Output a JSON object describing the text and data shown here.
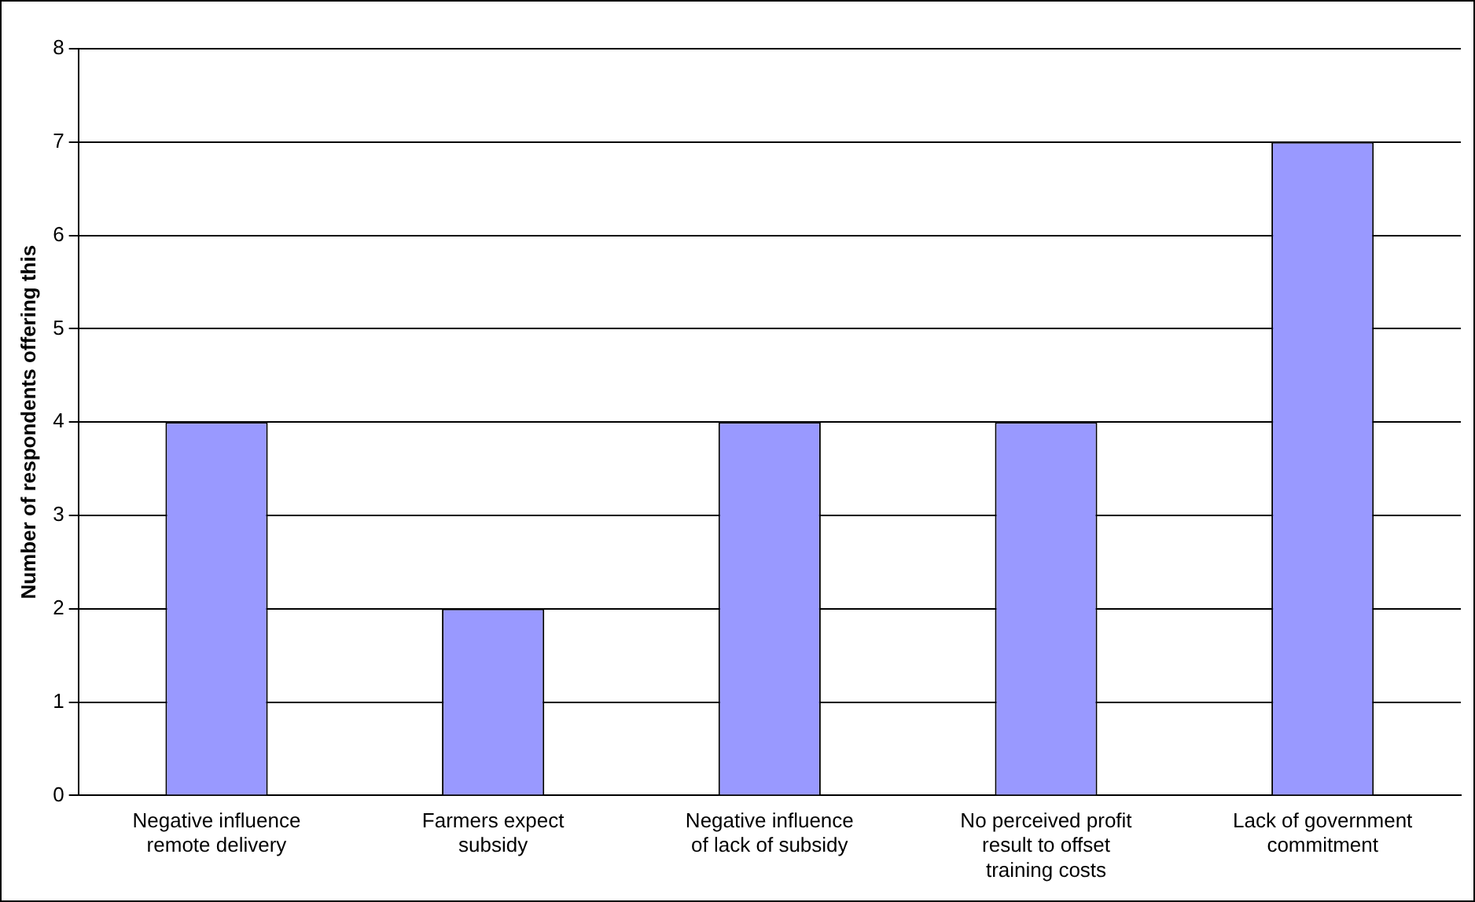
{
  "chart_data": {
    "type": "bar",
    "ylabel": "Number of respondents offering this",
    "categories": [
      "Negative influence remote delivery",
      "Farmers expect subsidy",
      "Negative influence of lack of subsidy",
      "No perceived profit result to offset training costs",
      "Lack of government commitment"
    ],
    "values": [
      4,
      2,
      4,
      4,
      7
    ],
    "color": "#9999ff",
    "ylim": [
      0,
      8
    ],
    "yticks": [
      0,
      1,
      2,
      3,
      4,
      5,
      6,
      7,
      8
    ],
    "grid": "y",
    "legend": false
  }
}
